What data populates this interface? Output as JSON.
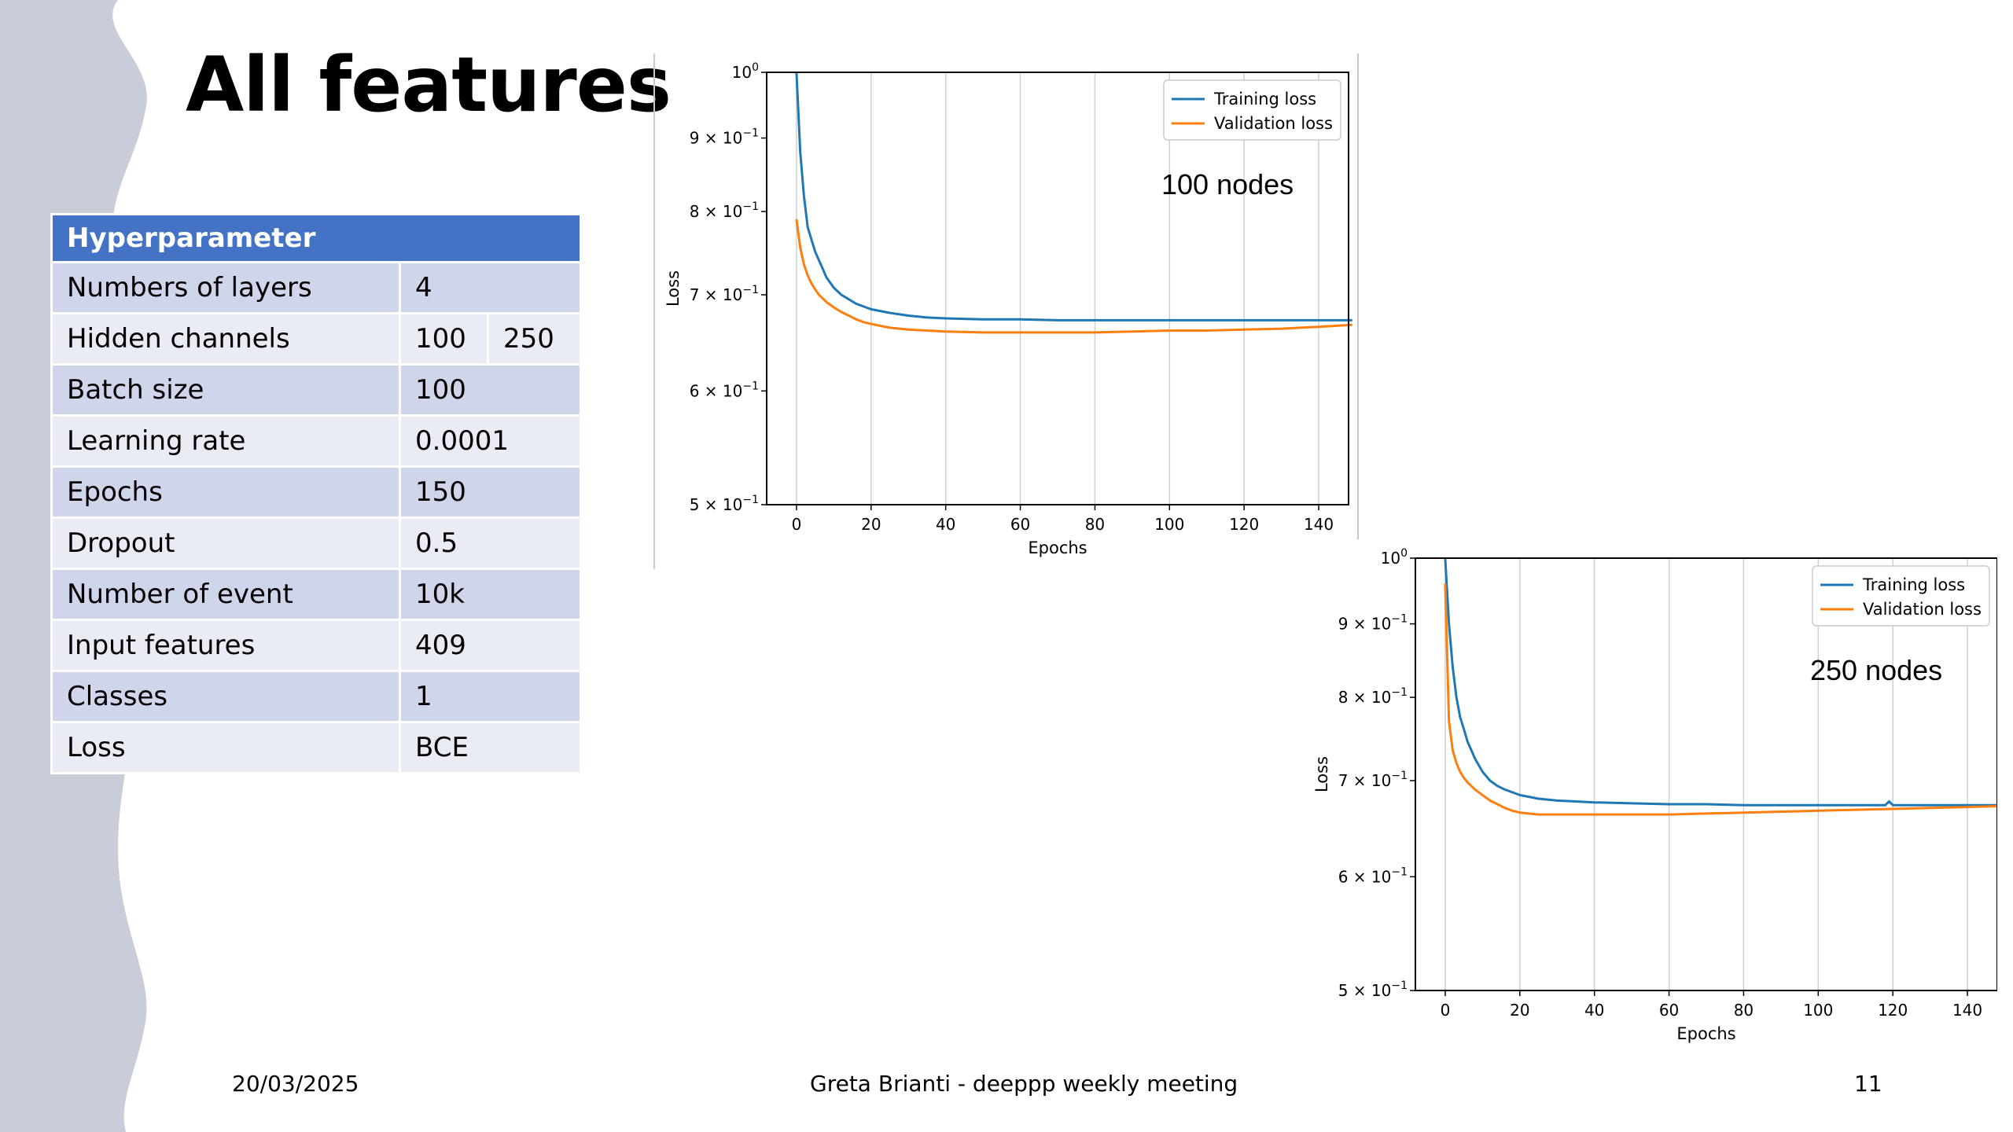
{
  "slide": {
    "title": "All features",
    "date": "20/03/2025",
    "footer": "Greta Brianti - deeppp weekly meeting",
    "page_number": "11"
  },
  "table": {
    "header": "Hyperparameter",
    "rows": [
      {
        "label": "Numbers of layers",
        "value": "4"
      },
      {
        "label": "Hidden channels",
        "value": "100",
        "value2": "250"
      },
      {
        "label": "Batch size",
        "value": "100"
      },
      {
        "label": "Learning rate",
        "value": "0.0001"
      },
      {
        "label": "Epochs",
        "value": "150"
      },
      {
        "label": "Dropout",
        "value": "0.5"
      },
      {
        "label": "Number of event",
        "value": "10k"
      },
      {
        "label": "Input features",
        "value": "409"
      },
      {
        "label": "Classes",
        "value": "1"
      },
      {
        "label": "Loss",
        "value": "BCE"
      }
    ]
  },
  "colors": {
    "training": "#1f77b4",
    "validation": "#ff7f0e",
    "header_bg": "#4472c4",
    "side_wave": "#c9ccd9"
  },
  "chart_data": [
    {
      "type": "line",
      "annotation": "100 nodes",
      "xlabel": "Epochs",
      "ylabel": "Loss",
      "xlim": [
        -8,
        148
      ],
      "ylim": [
        0.5,
        1.0
      ],
      "yscale": "log",
      "xticks": [
        0,
        20,
        40,
        60,
        80,
        100,
        120,
        140
      ],
      "yticks": [
        {
          "value": 1.0,
          "label": "10^0"
        },
        {
          "value": 0.9,
          "label": "9 × 10^−1"
        },
        {
          "value": 0.8,
          "label": "8 × 10^−1"
        },
        {
          "value": 0.7,
          "label": "7 × 10^−1"
        },
        {
          "value": 0.6,
          "label": "6 × 10^−1"
        },
        {
          "value": 0.5,
          "label": "5 × 10^−1"
        }
      ],
      "grid": "x",
      "legend_position": "top-right",
      "series": [
        {
          "name": "Training loss",
          "color": "#1f77b4",
          "x": [
            0,
            1,
            2,
            3,
            4,
            5,
            6,
            7,
            8,
            10,
            12,
            14,
            16,
            18,
            20,
            25,
            30,
            35,
            40,
            50,
            60,
            70,
            80,
            90,
            100,
            110,
            120,
            130,
            140,
            149
          ],
          "y": [
            1.0,
            0.88,
            0.82,
            0.78,
            0.765,
            0.75,
            0.74,
            0.73,
            0.72,
            0.708,
            0.7,
            0.695,
            0.69,
            0.687,
            0.684,
            0.68,
            0.677,
            0.675,
            0.674,
            0.673,
            0.673,
            0.672,
            0.672,
            0.672,
            0.672,
            0.672,
            0.672,
            0.672,
            0.672,
            0.672
          ]
        },
        {
          "name": "Validation loss",
          "color": "#ff7f0e",
          "x": [
            0,
            1,
            2,
            3,
            4,
            5,
            6,
            8,
            10,
            12,
            14,
            16,
            18,
            20,
            25,
            30,
            35,
            40,
            50,
            60,
            70,
            80,
            90,
            100,
            110,
            120,
            130,
            140,
            149
          ],
          "y": [
            0.79,
            0.755,
            0.735,
            0.722,
            0.713,
            0.706,
            0.7,
            0.692,
            0.686,
            0.681,
            0.677,
            0.673,
            0.67,
            0.668,
            0.664,
            0.662,
            0.661,
            0.66,
            0.659,
            0.659,
            0.659,
            0.659,
            0.66,
            0.661,
            0.661,
            0.662,
            0.663,
            0.665,
            0.667
          ]
        }
      ]
    },
    {
      "type": "line",
      "annotation": "250 nodes",
      "xlabel": "Epochs",
      "ylabel": "Loss",
      "xlim": [
        -8,
        148
      ],
      "ylim": [
        0.5,
        1.0
      ],
      "yscale": "log",
      "xticks": [
        0,
        20,
        40,
        60,
        80,
        100,
        120,
        140
      ],
      "yticks": [
        {
          "value": 1.0,
          "label": "10^0"
        },
        {
          "value": 0.9,
          "label": "9 × 10^−1"
        },
        {
          "value": 0.8,
          "label": "8 × 10^−1"
        },
        {
          "value": 0.7,
          "label": "7 × 10^−1"
        },
        {
          "value": 0.6,
          "label": "6 × 10^−1"
        },
        {
          "value": 0.5,
          "label": "5 × 10^−1"
        }
      ],
      "grid": "x",
      "legend_position": "top-right",
      "series": [
        {
          "name": "Training loss",
          "color": "#1f77b4",
          "x": [
            0,
            1,
            2,
            3,
            4,
            5,
            6,
            8,
            10,
            12,
            14,
            16,
            18,
            20,
            25,
            30,
            35,
            40,
            50,
            60,
            70,
            80,
            90,
            100,
            110,
            118,
            119,
            120,
            130,
            140,
            149
          ],
          "y": [
            1.0,
            0.9,
            0.84,
            0.8,
            0.775,
            0.76,
            0.745,
            0.725,
            0.71,
            0.7,
            0.694,
            0.69,
            0.687,
            0.684,
            0.68,
            0.678,
            0.677,
            0.676,
            0.675,
            0.674,
            0.674,
            0.673,
            0.673,
            0.673,
            0.673,
            0.673,
            0.677,
            0.673,
            0.673,
            0.673,
            0.673
          ]
        },
        {
          "name": "Validation loss",
          "color": "#ff7f0e",
          "x": [
            0,
            1,
            2,
            3,
            4,
            5,
            6,
            8,
            10,
            12,
            14,
            16,
            18,
            20,
            25,
            30,
            35,
            40,
            50,
            60,
            70,
            80,
            90,
            100,
            110,
            120,
            130,
            140,
            149
          ],
          "y": [
            0.96,
            0.77,
            0.735,
            0.72,
            0.71,
            0.703,
            0.698,
            0.69,
            0.684,
            0.678,
            0.674,
            0.67,
            0.667,
            0.665,
            0.663,
            0.663,
            0.663,
            0.663,
            0.663,
            0.663,
            0.664,
            0.665,
            0.666,
            0.667,
            0.668,
            0.669,
            0.67,
            0.671,
            0.672
          ]
        }
      ]
    }
  ]
}
